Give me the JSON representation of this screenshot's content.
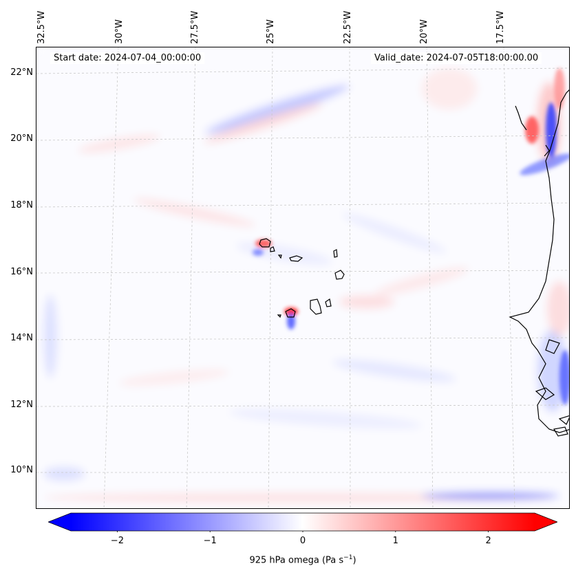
{
  "header": {
    "start_date": "Start date: 2024-07-04_00:00:00",
    "valid_date": "Valid_date: 2024-07-05T18:00:00.00"
  },
  "axes": {
    "longitude_labels": [
      "32.5°W",
      "30°W",
      "27.5°W",
      "25°W",
      "22.5°W",
      "20°W",
      "17.5°W"
    ],
    "latitude_labels": [
      "22°N",
      "20°N",
      "18°N",
      "16°N",
      "14°N",
      "12°N",
      "10°N"
    ]
  },
  "colorbar": {
    "title_prefix": "925 hPa omega (Pa s",
    "title_exp": "−1",
    "title_suffix": ")",
    "ticks": [
      "−2",
      "−1",
      "0",
      "1",
      "2"
    ],
    "tick_values": [
      -2,
      -1,
      0,
      1,
      2
    ],
    "vmin": -2.5,
    "vmax": 2.5,
    "colors": {
      "negative": "#0000ff",
      "zero": "#ffffff",
      "positive": "#ff0000"
    }
  },
  "colors": {
    "coastline": "#000000",
    "gridline": "#c8c8c8"
  }
}
